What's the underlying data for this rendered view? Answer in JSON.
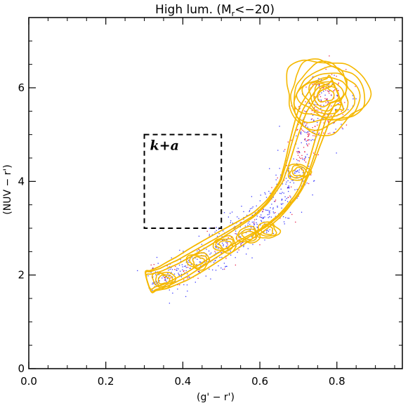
{
  "chart_data": {
    "type": "scatter",
    "title_main": "High lum. (M",
    "title_sub": "r",
    "title_tail": "<−20)",
    "xlabel": "(g' − r')",
    "ylabel": "(NUV − r')",
    "xlim": [
      0.0,
      0.97
    ],
    "ylim": [
      0.0,
      7.5
    ],
    "xticks": [
      "0.0",
      "0.2",
      "0.4",
      "0.6",
      "0.8"
    ],
    "yticks": [
      "0",
      "2",
      "4",
      "6"
    ],
    "grid": false,
    "box": {
      "label": "k+a",
      "x": [
        0.3,
        0.5
      ],
      "y": [
        3.0,
        5.0
      ]
    },
    "colors": {
      "contour": "#f5b800",
      "blue_points": "#3a3aff",
      "red_points": "#e8204a",
      "box": "#000000"
    },
    "ridge": [
      [
        0.31,
        1.85
      ],
      [
        0.35,
        1.95
      ],
      [
        0.4,
        2.15
      ],
      [
        0.45,
        2.4
      ],
      [
        0.5,
        2.65
      ],
      [
        0.55,
        2.9
      ],
      [
        0.6,
        3.15
      ],
      [
        0.64,
        3.45
      ],
      [
        0.68,
        3.9
      ],
      [
        0.7,
        4.35
      ],
      [
        0.72,
        4.9
      ],
      [
        0.74,
        5.4
      ],
      [
        0.77,
        5.8
      ],
      [
        0.8,
        5.9
      ]
    ],
    "peaks": [
      {
        "x": 0.35,
        "y": 1.9
      },
      {
        "x": 0.44,
        "y": 2.3
      },
      {
        "x": 0.51,
        "y": 2.65
      },
      {
        "x": 0.57,
        "y": 2.85
      },
      {
        "x": 0.62,
        "y": 2.95
      },
      {
        "x": 0.7,
        "y": 4.2
      },
      {
        "x": 0.77,
        "y": 5.85
      }
    ]
  }
}
